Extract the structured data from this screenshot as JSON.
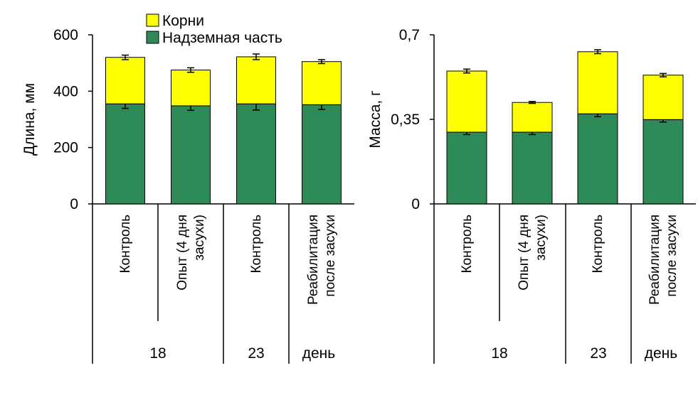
{
  "legend": {
    "roots": "Корни",
    "shoot": "Надземная часть"
  },
  "colors": {
    "roots": "#FFFF00",
    "shoot": "#2E8B57",
    "stroke": "#000000"
  },
  "chart_data": [
    {
      "type": "bar",
      "stacked": true,
      "title": "",
      "ylabel": "Длина, мм",
      "ylim": [
        0,
        600
      ],
      "yticks": [
        0,
        200,
        400,
        600
      ],
      "ytick_labels": [
        "0",
        "200",
        "400",
        "600"
      ],
      "categories": [
        "Контроль",
        "Опыт (4 дня засухи)",
        "Контроль",
        "Реабилитация после засухи"
      ],
      "category_lines": [
        [
          "Контроль"
        ],
        [
          "Опыт (4 дня",
          "засухи)"
        ],
        [
          "Контроль"
        ],
        [
          "Реабилитация",
          "после засухи"
        ]
      ],
      "groups": [
        {
          "label": "18",
          "span": [
            0,
            1
          ]
        },
        {
          "label": "23",
          "span": [
            2,
            2
          ]
        },
        {
          "label": "день",
          "span": [
            3,
            3
          ]
        }
      ],
      "series": [
        {
          "name": "Надземная часть",
          "key": "shoot",
          "values": [
            355,
            348,
            355,
            352
          ],
          "errors": [
            16,
            16,
            22,
            17
          ]
        },
        {
          "name": "Корни",
          "key": "roots",
          "values": [
            165,
            127,
            167,
            153
          ],
          "errors": [
            8,
            8,
            10,
            7
          ]
        }
      ]
    },
    {
      "type": "bar",
      "stacked": true,
      "title": "",
      "ylabel": "Масса, г",
      "ylim": [
        0,
        0.7
      ],
      "yticks": [
        0,
        0.35,
        0.7
      ],
      "ytick_labels": [
        "0",
        "0,35",
        "0,7"
      ],
      "categories": [
        "Контроль",
        "Опыт (4 дня засухи)",
        "Контроль",
        "Реабилитация после засухи"
      ],
      "category_lines": [
        [
          "Контроль"
        ],
        [
          "Опыт (4 дня",
          "засухи)"
        ],
        [
          "Контроль"
        ],
        [
          "Реабилитация",
          "после засухи"
        ]
      ],
      "groups": [
        {
          "label": "18",
          "span": [
            0,
            1
          ]
        },
        {
          "label": "23",
          "span": [
            2,
            2
          ]
        },
        {
          "label": "день",
          "span": [
            3,
            3
          ]
        }
      ],
      "series": [
        {
          "name": "Надземная часть",
          "key": "shoot",
          "values": [
            0.297,
            0.297,
            0.373,
            0.349
          ],
          "errors": [
            0.01,
            0.01,
            0.012,
            0.01
          ]
        },
        {
          "name": "Корни",
          "key": "roots",
          "values": [
            0.253,
            0.123,
            0.257,
            0.184
          ],
          "errors": [
            0.008,
            0.004,
            0.008,
            0.007
          ]
        }
      ]
    }
  ]
}
